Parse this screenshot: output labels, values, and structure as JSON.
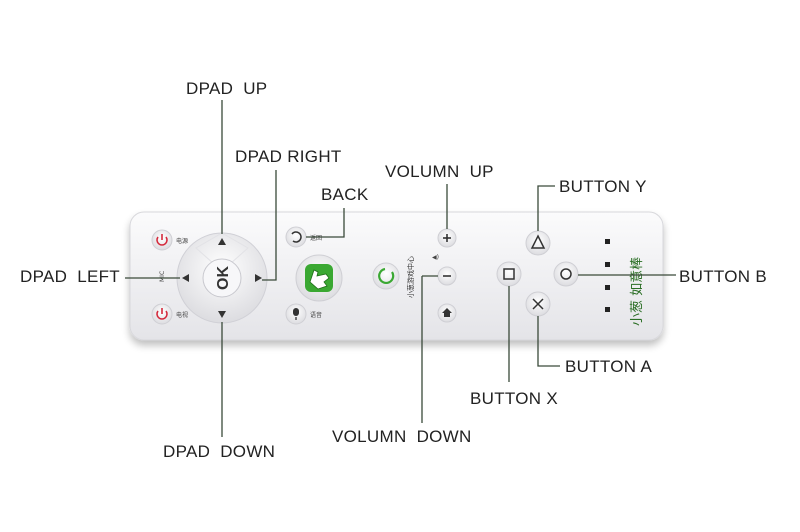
{
  "labels": {
    "dpad_up": "DPAD  UP",
    "dpad_right": "DPAD RIGHT",
    "back": "BACK",
    "volume_up": "VOLUMN  UP",
    "button_y": "BUTTON Y",
    "dpad_left": "DPAD  LEFT",
    "button_b": "BUTTON B",
    "button_a": "BUTTON A",
    "button_x": "BUTTON X",
    "volume_down": "VOLUMN  DOWN",
    "dpad_down": "DPAD  DOWN"
  },
  "remote": {
    "ok_label": "OK",
    "mic_label": "MIC",
    "vertical_text": "小葱游戏中心",
    "brand_text": "小葱 如意棒",
    "small_labels": [
      "电源",
      "返回",
      "语音",
      "电视"
    ]
  },
  "colors": {
    "leader_line": "#3a4a3a",
    "remote_body": "#f3f3f5",
    "power_red": "#d42a3c",
    "green_button": "#3aa832",
    "text": "#222222"
  },
  "icons": [
    "power-icon",
    "back-arrow-icon",
    "mic-icon",
    "hand-pointer-icon",
    "refresh-icon",
    "plus-icon",
    "minus-icon",
    "home-icon",
    "triangle-icon",
    "circle-icon",
    "cross-icon",
    "square-icon"
  ]
}
